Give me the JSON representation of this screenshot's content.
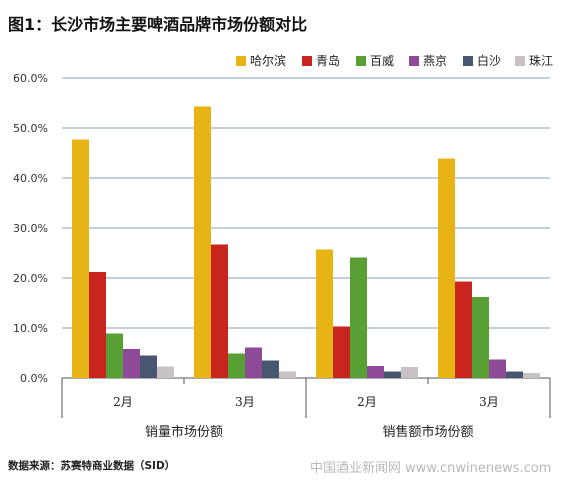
{
  "chart_data": {
    "type": "bar",
    "title": "图1：长沙市场主要啤酒品牌市场份额对比",
    "categories": [
      "2月",
      "3月",
      "2月",
      "3月"
    ],
    "groups": [
      {
        "label": "销量市场份额",
        "categories": [
          "2月",
          "3月"
        ]
      },
      {
        "label": "销售额市场份额",
        "categories": [
          "2月",
          "3月"
        ]
      }
    ],
    "series": [
      {
        "name": "哈尔滨",
        "color": "#e8b415",
        "values": [
          47.7,
          54.3,
          25.7,
          43.9
        ]
      },
      {
        "name": "青岛",
        "color": "#c8251f",
        "values": [
          21.2,
          26.7,
          10.3,
          19.3
        ]
      },
      {
        "name": "百威",
        "color": "#58a033",
        "values": [
          8.9,
          4.9,
          24.1,
          16.2
        ]
      },
      {
        "name": "燕京",
        "color": "#8c4a97",
        "values": [
          5.8,
          6.1,
          2.4,
          3.7
        ]
      },
      {
        "name": "白沙",
        "color": "#475770",
        "values": [
          4.5,
          3.5,
          1.3,
          1.3
        ]
      },
      {
        "name": "珠江",
        "color": "#c9c2c5",
        "values": [
          2.3,
          1.3,
          2.2,
          1.0
        ]
      }
    ],
    "ylim": [
      0,
      60
    ],
    "yticks": [
      "0.0%",
      "10.0%",
      "20.0%",
      "30.0%",
      "40.0%",
      "50.0%",
      "60.0%"
    ],
    "grid": true,
    "legend_position": "top"
  },
  "source_note": "数据来源：苏赛特商业数据（SID）",
  "watermark": "中国酒业新闻网 www.cnwinenews.com"
}
